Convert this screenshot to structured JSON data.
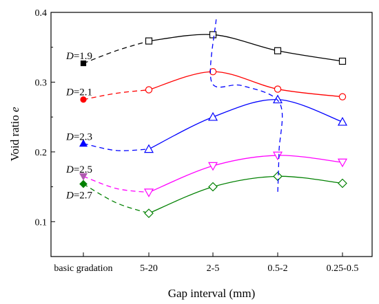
{
  "chart_data": {
    "type": "line",
    "xlabel": "Gap interval (mm)",
    "ylabel": "Void ratio e",
    "ylabel_main": "Void ratio ",
    "ylabel_var": "e",
    "ylim": [
      0.05,
      0.4
    ],
    "yticks": [
      0.1,
      0.2,
      0.3,
      0.4
    ],
    "ytick_labels": [
      "0.1",
      "0.2",
      "0.3",
      "0.4"
    ],
    "categories": [
      "basic gradation",
      "5-20",
      "2-5",
      "0.5-2",
      "0.25-0.5"
    ],
    "grid": false,
    "series": [
      {
        "name": "D=1.9",
        "label_var": "D",
        "label_val": "=1.9",
        "color": "#000000",
        "marker": "square",
        "basic_marker": "square-filled",
        "values": [
          0.327,
          0.359,
          0.368,
          0.345,
          0.33
        ],
        "label_y": 0.338
      },
      {
        "name": "D=2.1",
        "label_var": "D",
        "label_val": "=2.1",
        "color": "#ff0000",
        "marker": "circle",
        "basic_marker": "circle-filled",
        "values": [
          0.275,
          0.289,
          0.315,
          0.29,
          0.279
        ],
        "label_y": 0.286
      },
      {
        "name": "D=2.3",
        "label_var": "D",
        "label_val": "=2.3",
        "color": "#0000ff",
        "marker": "triangle-up",
        "basic_marker": "triangle-up-filled",
        "values": [
          0.212,
          0.204,
          0.25,
          0.275,
          0.243
        ],
        "label_y": 0.222
      },
      {
        "name": "D=2.5",
        "label_var": "D",
        "label_val": "=2.5",
        "color": "#ff00ff",
        "marker": "triangle-down",
        "basic_marker": "triangle-down-filled",
        "basic_color": "#b05ab0",
        "values": [
          0.165,
          0.142,
          0.18,
          0.195,
          0.185
        ],
        "label_y": 0.175
      },
      {
        "name": "D=2.7",
        "label_var": "D",
        "label_val": "=2.7",
        "color": "#008000",
        "marker": "diamond",
        "basic_marker": "diamond-filled",
        "values": [
          0.154,
          0.112,
          0.15,
          0.165,
          0.155
        ],
        "label_y": 0.138
      }
    ],
    "annotation": {
      "type": "dashed-curve",
      "color": "#0000ff",
      "points": [
        [
          2.05,
          0.39
        ],
        [
          1.98,
          0.3
        ],
        [
          2.45,
          0.295
        ],
        [
          3.03,
          0.27
        ],
        [
          3.02,
          0.2
        ],
        [
          3.0,
          0.14
        ]
      ]
    }
  }
}
